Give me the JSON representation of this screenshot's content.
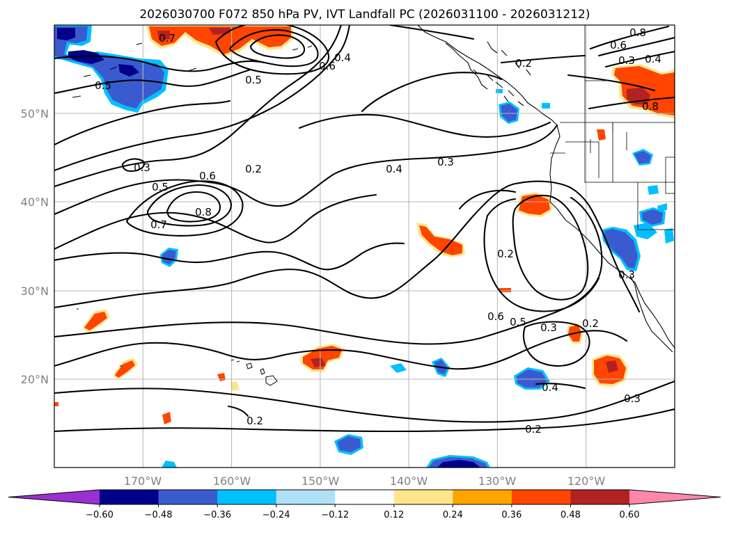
{
  "title": "2026030700 F072 850 hPa PV, IVT Landfall PC (2026031100 - 2026031212)",
  "axes": {
    "x_ticks": [
      "170°W",
      "160°W",
      "150°W",
      "140°W",
      "130°W",
      "120°W"
    ],
    "y_ticks": [
      "20°N",
      "30°N",
      "40°N",
      "50°N"
    ]
  },
  "chart_data": {
    "type": "heatmap",
    "description_fields": "filled PV anomaly patches over map with black IVT principal-component contours",
    "lon_range": [
      -180,
      -110
    ],
    "lat_range": [
      10,
      60
    ],
    "contour_levels_shown": [
      "0.2",
      "0.3",
      "0.4",
      "0.5",
      "0.6",
      "0.7",
      "0.8"
    ],
    "contour_labels": [
      "0.7",
      "0.5",
      "0.5",
      "0.4",
      "0.6",
      "0.8",
      "0.3",
      "0.2",
      "0.8",
      "0.6",
      "0.4",
      "0.3",
      "0.2",
      "0.3",
      "0.6",
      "0.5",
      "0.8",
      "0.7",
      "0.4",
      "0.3",
      "0.6",
      "0.5",
      "0.3",
      "0.2",
      "0.4",
      "0.3",
      "0.2",
      "0.2",
      "0.2"
    ],
    "colorbar": {
      "ticks": [
        "−0.60",
        "−0.48",
        "−0.36",
        "−0.24",
        "−0.12",
        "0.12",
        "0.24",
        "0.36",
        "0.48",
        "0.60"
      ],
      "bounds": [
        -0.6,
        -0.48,
        -0.36,
        -0.24,
        -0.12,
        0.12,
        0.24,
        0.36,
        0.48,
        0.6
      ],
      "colors": [
        "#9b30d0",
        "#00008b",
        "#3a5bd0",
        "#00bfff",
        "#b0e0f8",
        "#ffffff",
        "#ffe68a",
        "#ffa500",
        "#ff4500",
        "#b22222",
        "#ff88aa"
      ],
      "extend": "both"
    }
  },
  "colors": {
    "grid": "#b8b8b8",
    "axis_label": "#808080"
  }
}
